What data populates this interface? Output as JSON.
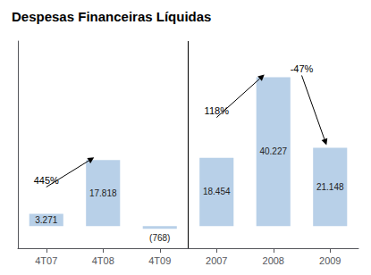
{
  "chart_data": {
    "type": "bar",
    "title": "Despesas Financeiras Líquidas",
    "categories": [
      "4T07",
      "4T08",
      "4T09",
      "2007",
      "2008",
      "2009"
    ],
    "values": [
      3.271,
      17.818,
      -0.768,
      18.454,
      40.227,
      21.148
    ],
    "value_labels": [
      "3.271",
      "17.818",
      "(768)",
      "18.454",
      "40.227",
      "21.148"
    ],
    "data_labels": true,
    "color": "#b8d0e8",
    "ylim": [
      -6,
      50
    ],
    "grid": false,
    "tick_labels": "x",
    "annotations": [
      {
        "text": "445%",
        "category": "4T08"
      },
      {
        "text": "118%",
        "category": "2008"
      },
      {
        "text": "-47%",
        "category": "2009"
      }
    ]
  }
}
